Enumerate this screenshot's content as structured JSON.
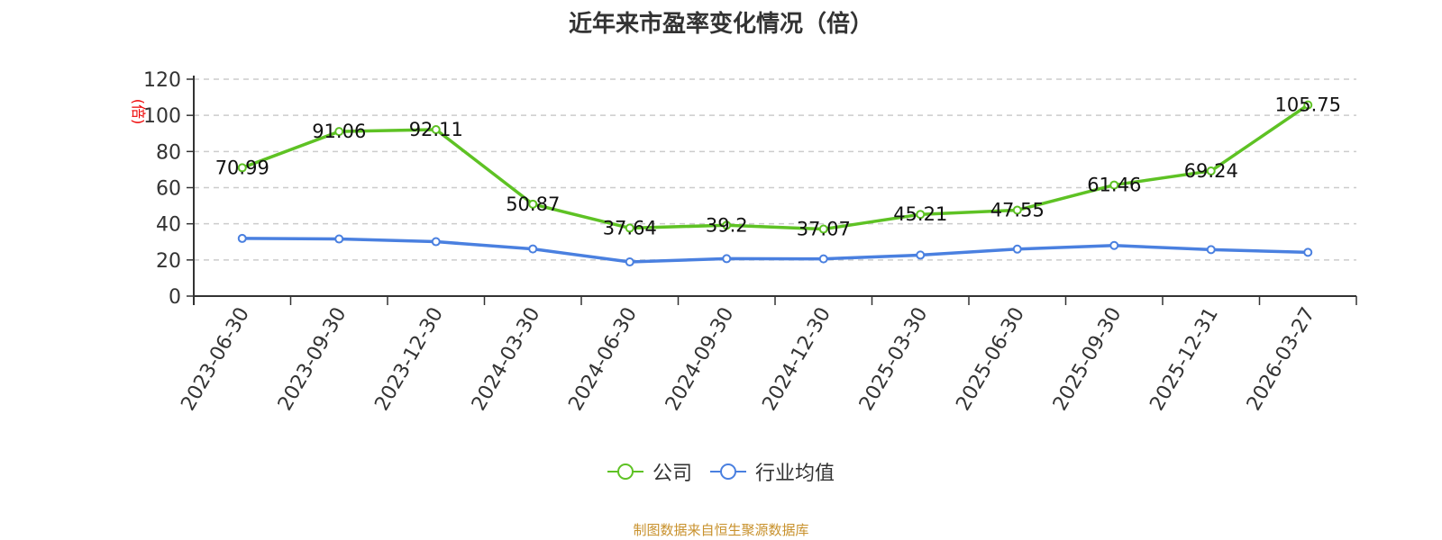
{
  "title": "近年来市盈率变化情况（倍）",
  "source": "制图数据来自恒生聚源数据库",
  "legend": [
    {
      "label": "公司",
      "color": "#5ec224"
    },
    {
      "label": "行业均值",
      "color": "#4a80e0"
    }
  ],
  "chart_data": {
    "type": "line",
    "title": "近年来市盈率变化情况（倍）",
    "xlabel": "",
    "ylabel": "(倍)",
    "ylim": [
      0,
      120
    ],
    "yticks": [
      0,
      20,
      40,
      60,
      80,
      100,
      120
    ],
    "grid": true,
    "legend_position": "bottom",
    "categories": [
      "2023-06-30",
      "2023-09-30",
      "2023-12-30",
      "2024-03-30",
      "2024-06-30",
      "2024-09-30",
      "2024-12-30",
      "2025-03-30",
      "2025-06-30",
      "2025-09-30",
      "2025-12-31",
      "2026-03-27"
    ],
    "series": [
      {
        "name": "公司",
        "color": "#5ec224",
        "values": [
          70.99,
          91.06,
          92.11,
          50.87,
          37.64,
          39.2,
          37.07,
          45.21,
          47.55,
          61.46,
          69.24,
          105.75
        ],
        "labels_shown": true
      },
      {
        "name": "行业均值",
        "color": "#4a80e0",
        "values": [
          31.9,
          31.6,
          30.1,
          26.1,
          18.9,
          20.7,
          20.6,
          22.7,
          26.0,
          28.0,
          25.7,
          24.2
        ],
        "labels_shown": false
      }
    ]
  }
}
